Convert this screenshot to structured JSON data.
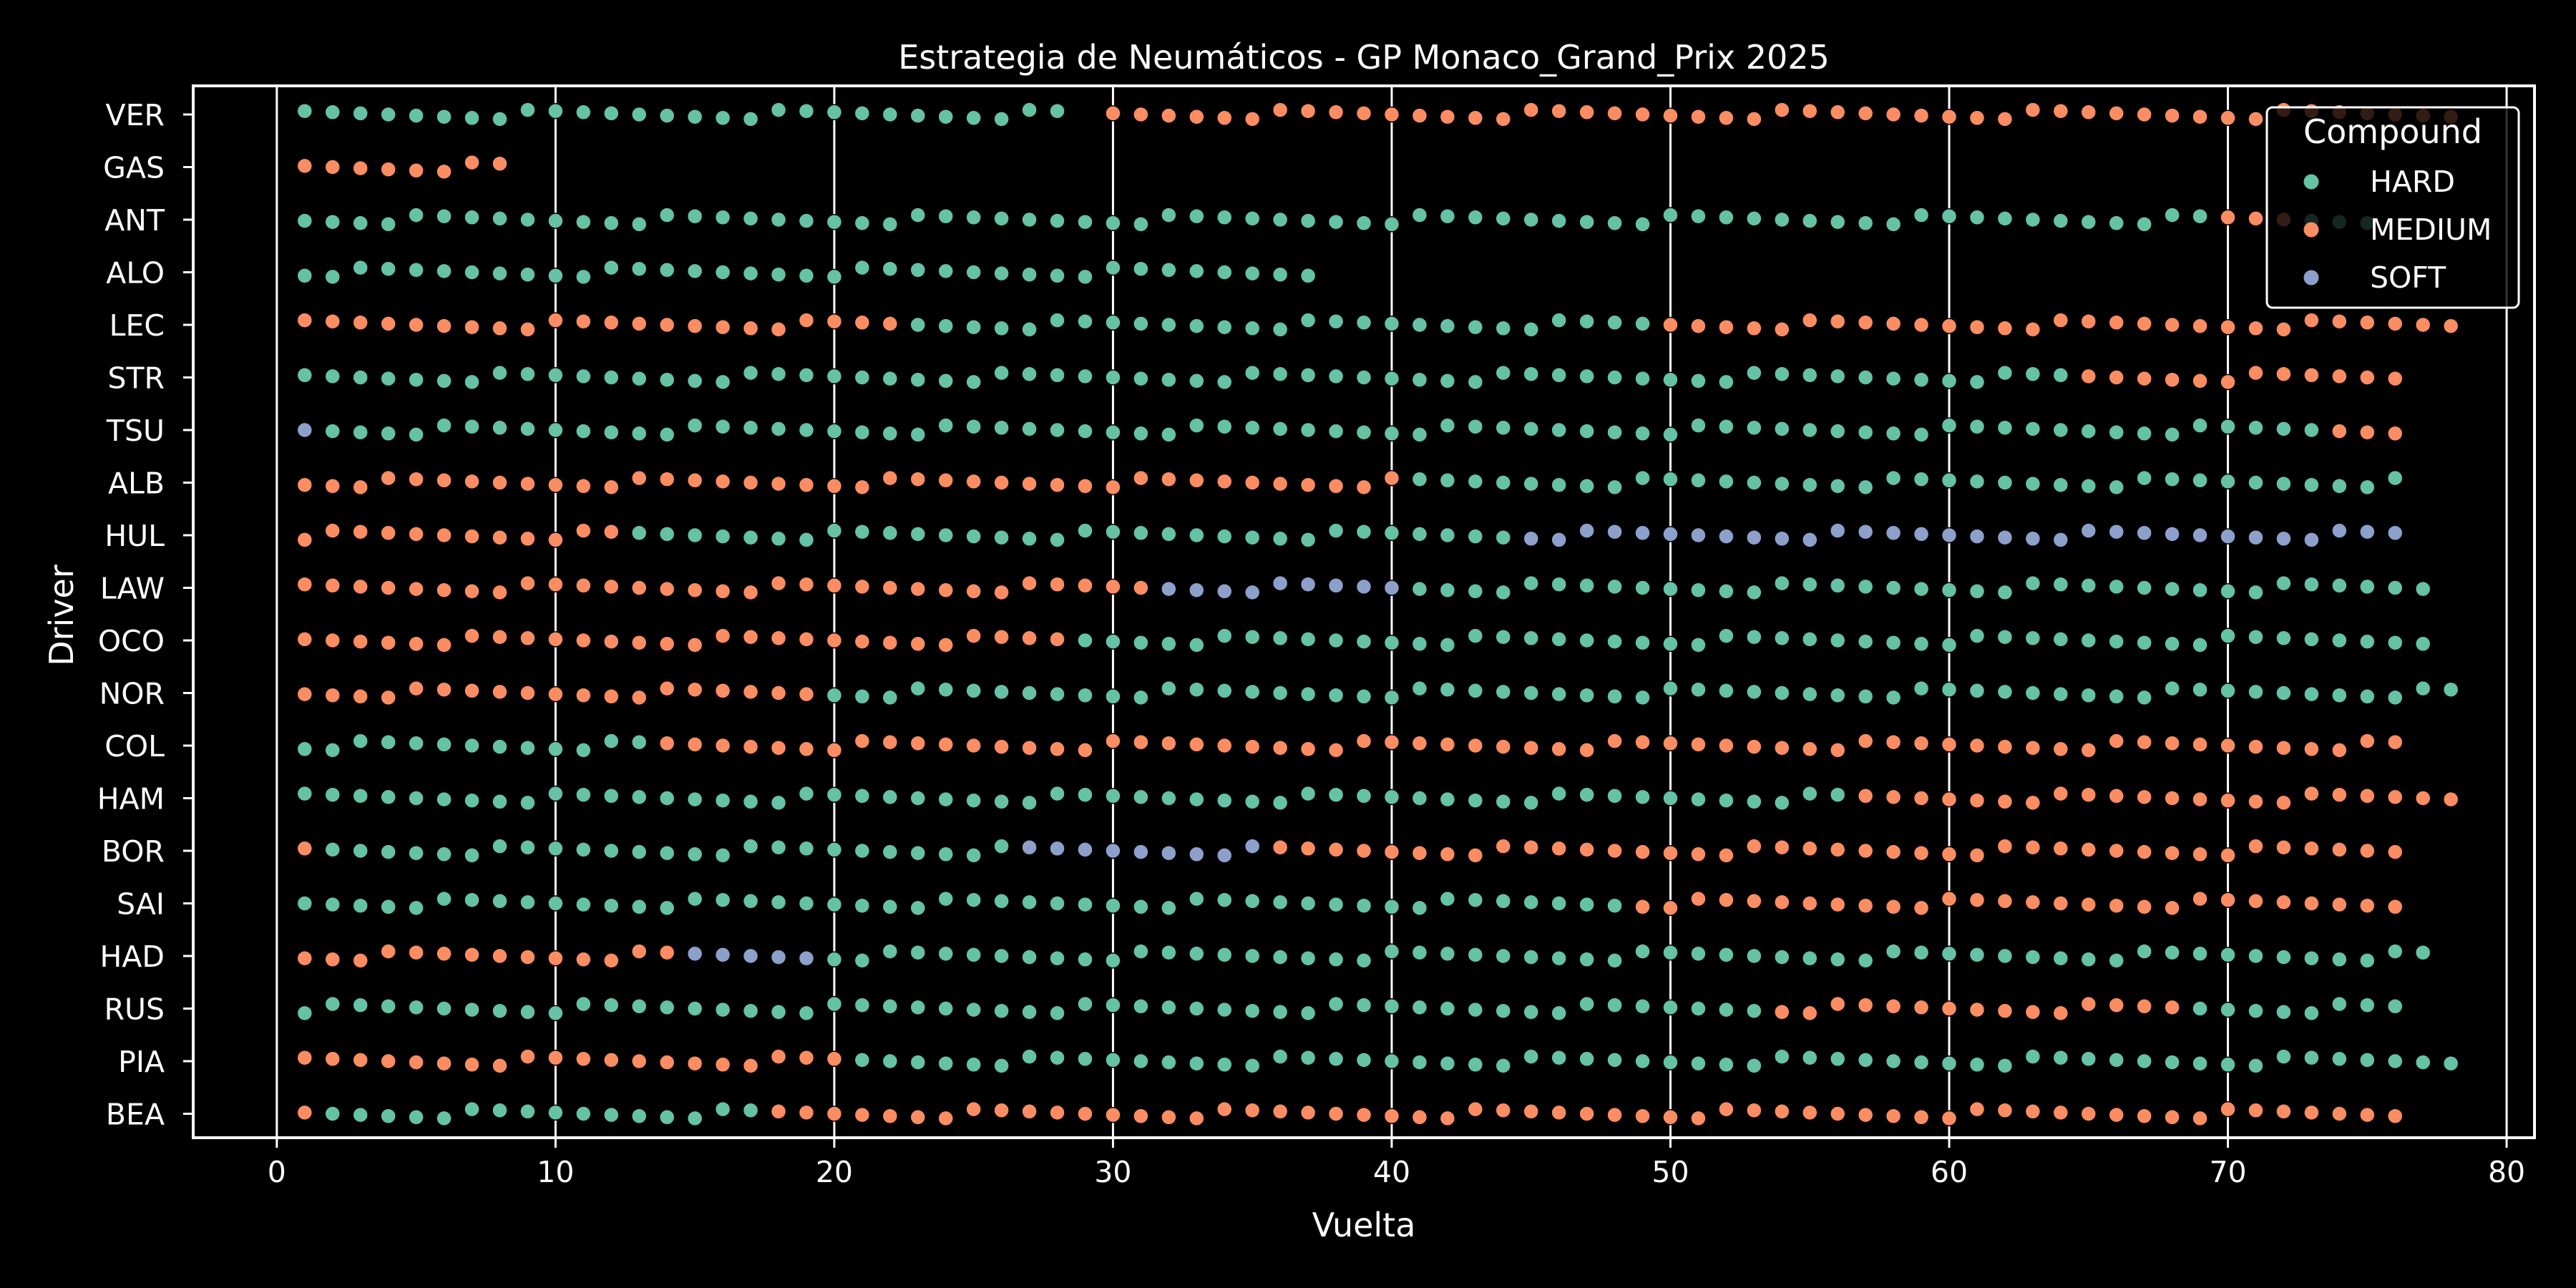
{
  "chart_data": {
    "type": "scatter",
    "title": "Estrategia de Neumáticos - GP Monaco_Grand_Prix 2025",
    "xlabel": "Vuelta",
    "ylabel": "Driver",
    "xlim": [
      -3,
      81
    ],
    "xticks": [
      0,
      10,
      20,
      30,
      40,
      50,
      60,
      70,
      80
    ],
    "grid": "vertical",
    "legend": {
      "title": "Compound",
      "placement": "top-right"
    },
    "colors": {
      "HARD": "#66c2a5",
      "MEDIUM": "#fc8d62",
      "SOFT": "#8da0cb"
    },
    "categories": [
      "VER",
      "GAS",
      "ANT",
      "ALO",
      "LEC",
      "STR",
      "TSU",
      "ALB",
      "HUL",
      "LAW",
      "OCO",
      "NOR",
      "COL",
      "HAM",
      "BOR",
      "SAI",
      "HAD",
      "RUS",
      "PIA",
      "BEA"
    ],
    "series": [
      {
        "name": "HARD",
        "stints": [
          {
            "driver": "VER",
            "from": 1,
            "to": 28
          },
          {
            "driver": "ANT",
            "from": 1,
            "to": 69
          },
          {
            "driver": "ANT",
            "from": 73,
            "to": 75
          },
          {
            "driver": "ALO",
            "from": 1,
            "to": 37
          },
          {
            "driver": "LEC",
            "from": 23,
            "to": 49
          },
          {
            "driver": "STR",
            "from": 1,
            "to": 64
          },
          {
            "driver": "TSU",
            "from": 2,
            "to": 73
          },
          {
            "driver": "ALB",
            "from": 41,
            "to": 76
          },
          {
            "driver": "HUL",
            "from": 13,
            "to": 44
          },
          {
            "driver": "LAW",
            "from": 41,
            "to": 77
          },
          {
            "driver": "OCO",
            "from": 29,
            "to": 77
          },
          {
            "driver": "NOR",
            "from": 20,
            "to": 78
          },
          {
            "driver": "COL",
            "from": 1,
            "to": 13
          },
          {
            "driver": "HAM",
            "from": 1,
            "to": 56
          },
          {
            "driver": "BOR",
            "from": 2,
            "to": 26
          },
          {
            "driver": "BOR",
            "from": 27,
            "to": 35
          },
          {
            "driver": "SAI",
            "from": 1,
            "to": 48
          },
          {
            "driver": "HAD",
            "from": 20,
            "to": 77
          },
          {
            "driver": "RUS",
            "from": 1,
            "to": 53
          },
          {
            "driver": "RUS",
            "from": 69,
            "to": 76
          },
          {
            "driver": "PIA",
            "from": 21,
            "to": 78
          },
          {
            "driver": "BEA",
            "from": 2,
            "to": 17
          }
        ]
      },
      {
        "name": "MEDIUM",
        "stints": [
          {
            "driver": "VER",
            "from": 30,
            "to": 78
          },
          {
            "driver": "GAS",
            "from": 1,
            "to": 8
          },
          {
            "driver": "ANT",
            "from": 70,
            "to": 72
          },
          {
            "driver": "LEC",
            "from": 1,
            "to": 22
          },
          {
            "driver": "LEC",
            "from": 50,
            "to": 78
          },
          {
            "driver": "STR",
            "from": 65,
            "to": 76
          },
          {
            "driver": "TSU",
            "from": 74,
            "to": 76
          },
          {
            "driver": "ALB",
            "from": 1,
            "to": 40
          },
          {
            "driver": "HUL",
            "from": 1,
            "to": 12
          },
          {
            "driver": "LAW",
            "from": 1,
            "to": 31
          },
          {
            "driver": "OCO",
            "from": 1,
            "to": 28
          },
          {
            "driver": "NOR",
            "from": 1,
            "to": 19
          },
          {
            "driver": "COL",
            "from": 14,
            "to": 76
          },
          {
            "driver": "HAM",
            "from": 57,
            "to": 78
          },
          {
            "driver": "BOR",
            "from": 1,
            "to": 1
          },
          {
            "driver": "BOR",
            "from": 36,
            "to": 76
          },
          {
            "driver": "SAI",
            "from": 49,
            "to": 76
          },
          {
            "driver": "HAD",
            "from": 1,
            "to": 14
          },
          {
            "driver": "RUS",
            "from": 54,
            "to": 68
          },
          {
            "driver": "PIA",
            "from": 1,
            "to": 20
          },
          {
            "driver": "BEA",
            "from": 1,
            "to": 1
          },
          {
            "driver": "BEA",
            "from": 18,
            "to": 76
          }
        ]
      },
      {
        "name": "SOFT",
        "stints": [
          {
            "driver": "TSU",
            "from": 1,
            "to": 1
          },
          {
            "driver": "HUL",
            "from": 45,
            "to": 76
          },
          {
            "driver": "LAW",
            "from": 32,
            "to": 40
          },
          {
            "driver": "BOR",
            "from": 27,
            "to": 35
          },
          {
            "driver": "HAD",
            "from": 15,
            "to": 19
          }
        ]
      }
    ]
  }
}
